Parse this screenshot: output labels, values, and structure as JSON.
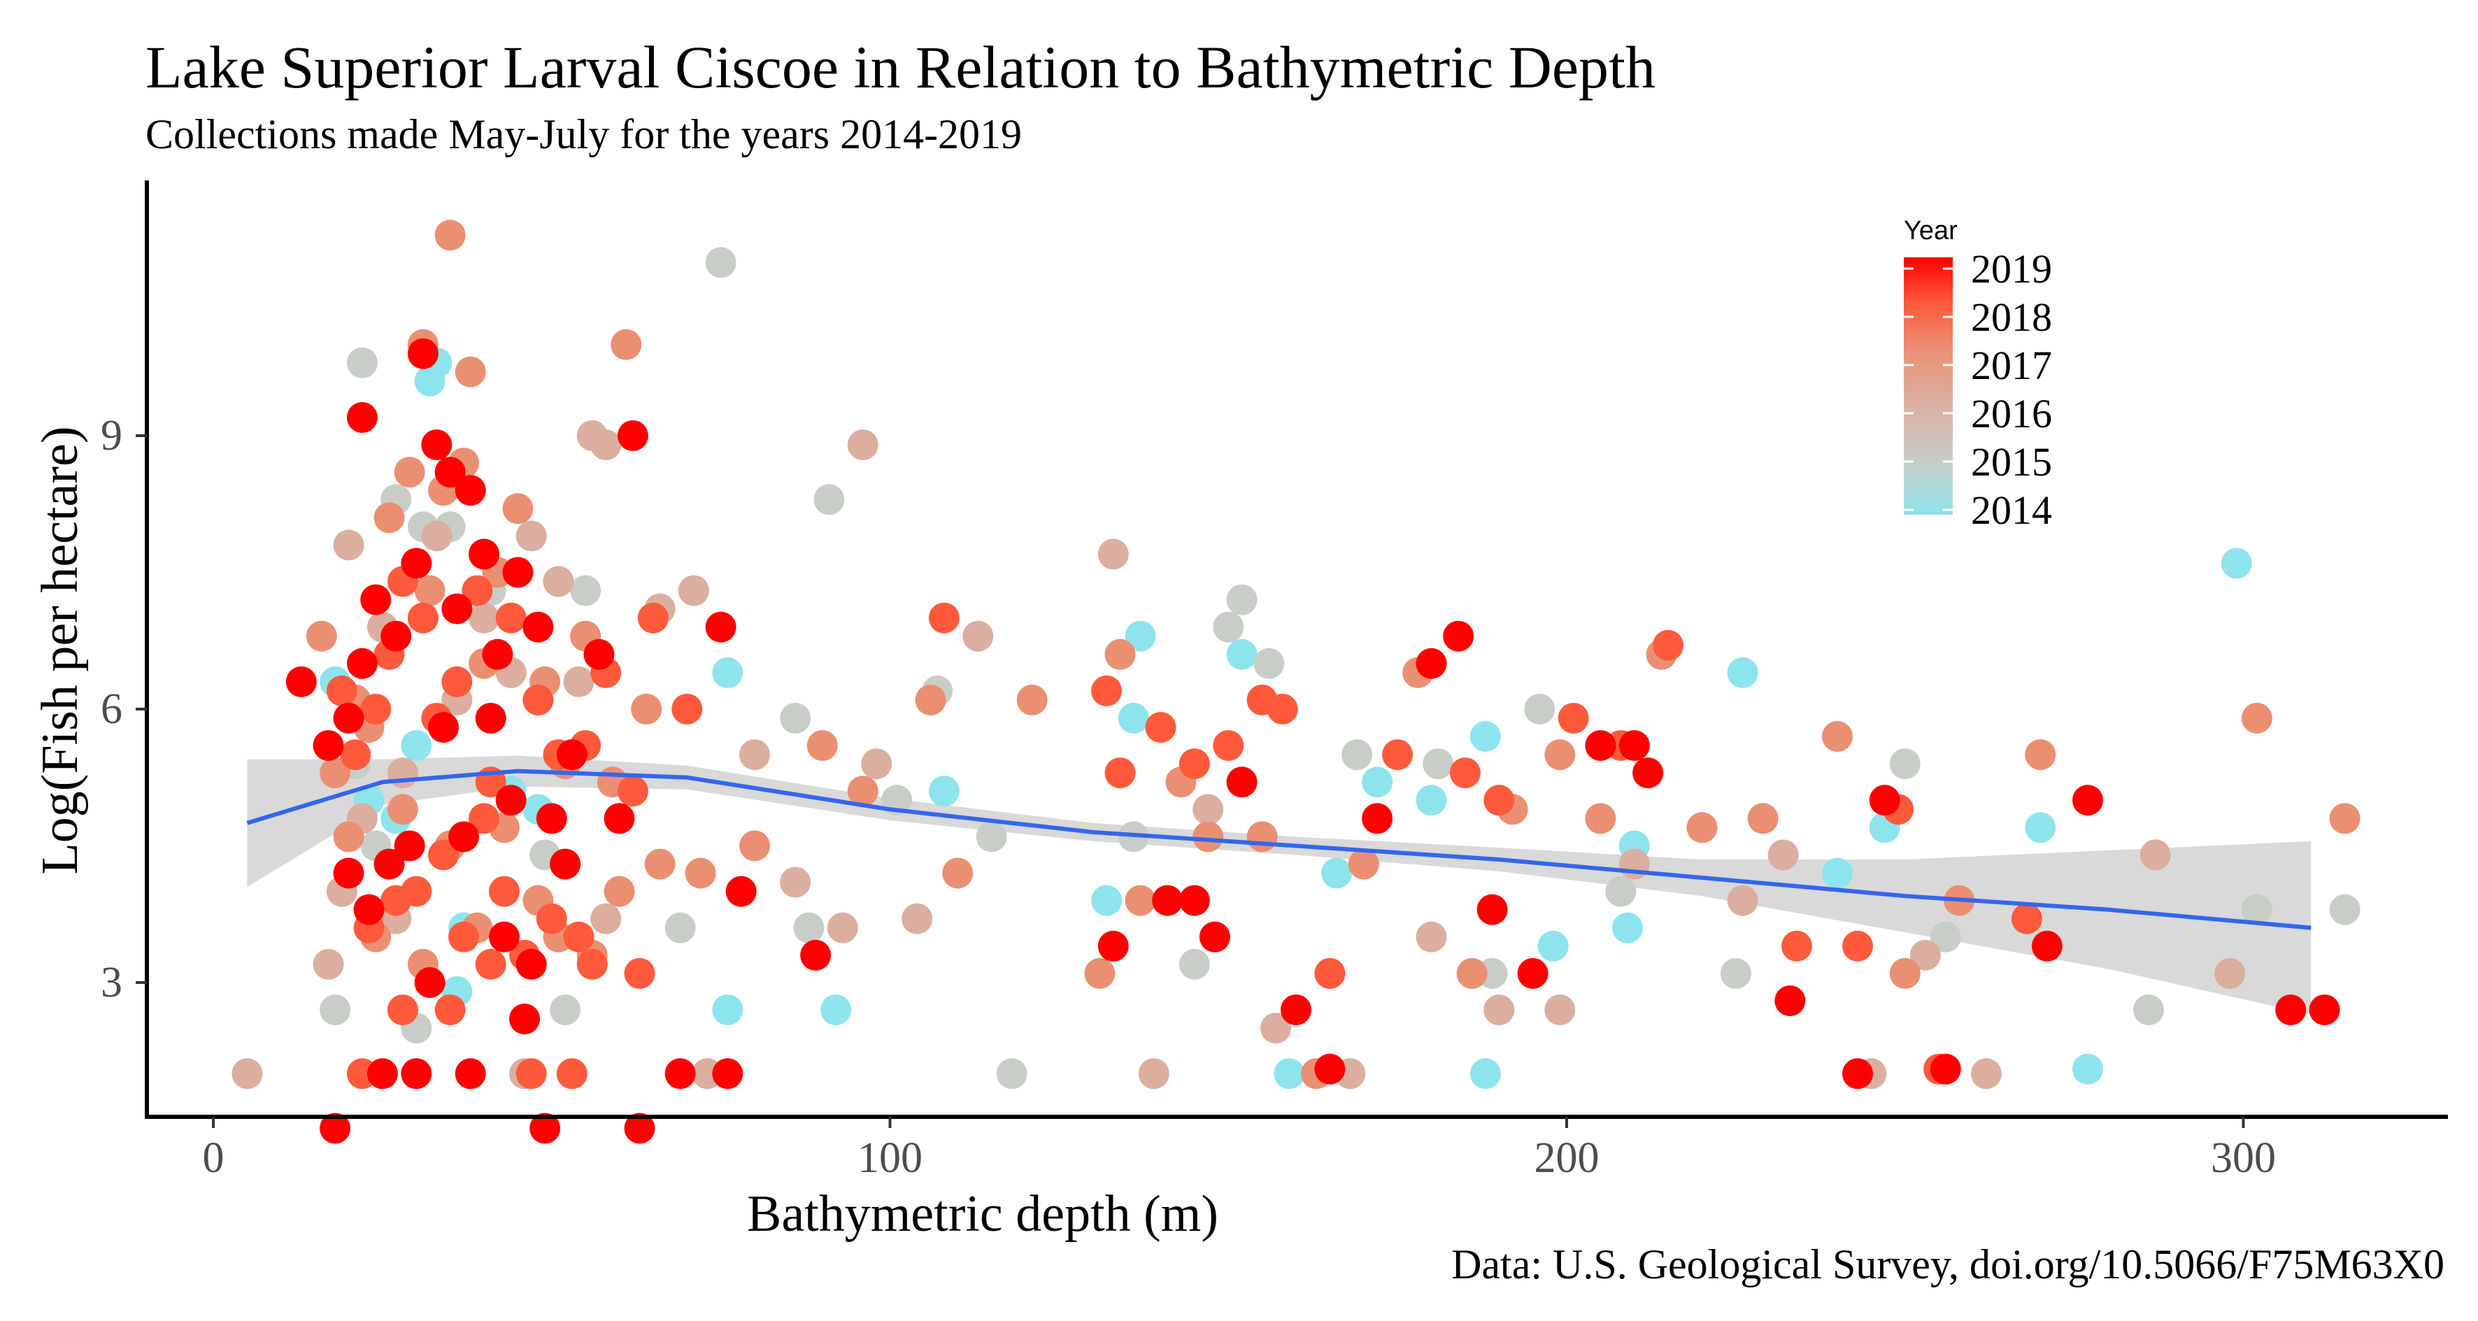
{
  "chart_data": {
    "type": "scatter",
    "title": "Lake Superior Larval Ciscoe in Relation to Bathymetric Depth",
    "subtitle": "Collections made May-July for the years 2014-2019",
    "xlabel": "Bathymetric depth (m)",
    "ylabel": "Log(Fish per hectare)",
    "caption": "Data: U.S. Geological Survey, doi.org/10.5066/F75M63X0",
    "xlim": [
      -10,
      330
    ],
    "ylim": [
      1.4,
      11.5
    ],
    "x_ticks": [
      0,
      100,
      200,
      300
    ],
    "x_tick_labels": [
      "0",
      "100",
      "200",
      "300"
    ],
    "y_ticks": [
      3,
      6,
      9
    ],
    "y_tick_labels": [
      "3",
      "6",
      "9"
    ],
    "grid": false,
    "legend": {
      "title": "Year",
      "placement": "top-right",
      "labels": [
        "2019",
        "2018",
        "2017",
        "2016",
        "2015",
        "2014"
      ],
      "colors": [
        "#ff0000",
        "#ff5a3c",
        "#eb8f72",
        "#dbaea0",
        "#c8cdc8",
        "#8ee4ec"
      ]
    },
    "smooth": {
      "color": "#3366ee",
      "band_color": "#cccccc",
      "x": [
        5,
        25,
        45,
        70,
        100,
        130,
        160,
        190,
        220,
        250,
        280,
        310
      ],
      "y": [
        4.75,
        5.2,
        5.32,
        5.25,
        4.9,
        4.65,
        4.5,
        4.35,
        4.15,
        3.95,
        3.8,
        3.6
      ],
      "lower": [
        4.05,
        4.95,
        5.15,
        5.12,
        4.78,
        4.55,
        4.4,
        4.22,
        3.95,
        3.55,
        3.15,
        2.65
      ],
      "upper": [
        5.45,
        5.45,
        5.49,
        5.38,
        5.02,
        4.75,
        4.6,
        4.48,
        4.35,
        4.35,
        4.45,
        4.55
      ]
    },
    "series": [
      {
        "name": "2019",
        "color": "#ff0000",
        "x": [
          13,
          17,
          20,
          22,
          24,
          27,
          30,
          33,
          35,
          38,
          40,
          42,
          45,
          48,
          50,
          53,
          57,
          62,
          20,
          23,
          26,
          29,
          32,
          34,
          37,
          41,
          44,
          47,
          52,
          60,
          75,
          78,
          89,
          133,
          141,
          145,
          148,
          152,
          160,
          165,
          172,
          180,
          184,
          189,
          195,
          205,
          210,
          212,
          233,
          243,
          247,
          256,
          271,
          277,
          307,
          312,
          22,
          31,
          36,
          46,
          18,
          25,
          30,
          38,
          43,
          49,
          63,
          69,
          76
        ],
        "y": [
          6.3,
          5.6,
          5.9,
          6.5,
          7.2,
          6.8,
          7.6,
          8.9,
          8.6,
          8.4,
          7.7,
          6.6,
          7.5,
          6.9,
          4.8,
          5.5,
          6.6,
          9.0,
          4.2,
          3.8,
          4.3,
          4.5,
          3.0,
          5.8,
          4.6,
          5.9,
          5.0,
          3.2,
          4.3,
          4.8,
          6.9,
          4.0,
          3.3,
          3.4,
          3.9,
          3.9,
          3.5,
          5.2,
          2.7,
          2.05,
          4.8,
          6.5,
          6.8,
          3.8,
          3.1,
          5.6,
          5.6,
          5.3,
          2.8,
          2.0,
          5.0,
          2.05,
          3.4,
          5.0,
          2.7,
          2.7,
          9.2,
          9.9,
          7.1,
          2.6,
          1.4,
          2.0,
          2.0,
          2.0,
          3.5,
          1.4,
          1.4,
          2.0,
          2.0
        ]
      },
      {
        "name": "2018",
        "color": "#ff5a3c",
        "x": [
          19,
          21,
          24,
          26,
          28,
          31,
          33,
          36,
          39,
          41,
          44,
          48,
          51,
          55,
          58,
          62,
          65,
          70,
          23,
          27,
          30,
          34,
          37,
          40,
          43,
          46,
          50,
          54,
          56,
          63,
          108,
          132,
          134,
          140,
          145,
          150,
          155,
          158,
          165,
          175,
          185,
          190,
          201,
          208,
          215,
          234,
          243,
          249,
          255,
          268,
          22,
          28,
          35,
          41,
          47,
          53
        ],
        "y": [
          6.2,
          5.5,
          6.0,
          6.6,
          7.4,
          7.0,
          5.9,
          6.3,
          7.3,
          5.2,
          7.0,
          6.1,
          5.5,
          5.6,
          6.4,
          5.1,
          7.0,
          6.0,
          3.6,
          3.9,
          4.0,
          4.4,
          3.5,
          4.8,
          4.0,
          3.3,
          3.7,
          3.5,
          3.2,
          3.1,
          7.0,
          6.2,
          5.3,
          5.8,
          5.4,
          5.6,
          6.1,
          6.0,
          3.1,
          5.5,
          5.3,
          5.0,
          5.9,
          5.6,
          6.7,
          3.4,
          3.4,
          4.9,
          2.05,
          3.7,
          2.0,
          2.7,
          2.7,
          3.2,
          2.0,
          2.0
        ]
      },
      {
        "name": "2017",
        "color": "#eb8f72",
        "x": [
          16,
          18,
          21,
          23,
          26,
          29,
          32,
          34,
          37,
          40,
          42,
          45,
          49,
          52,
          55,
          59,
          64,
          72,
          20,
          24,
          28,
          31,
          35,
          39,
          43,
          48,
          51,
          56,
          60,
          66,
          80,
          90,
          96,
          106,
          110,
          121,
          131,
          134,
          137,
          143,
          147,
          155,
          163,
          170,
          178,
          186,
          192,
          199,
          205,
          214,
          220,
          229,
          240,
          250,
          258,
          270,
          302,
          315,
          35,
          31,
          61,
          38
        ],
        "y": [
          6.8,
          5.3,
          6.1,
          5.8,
          8.1,
          8.6,
          7.3,
          8.4,
          8.7,
          6.5,
          7.5,
          8.2,
          6.3,
          5.4,
          6.8,
          5.2,
          6.0,
          4.2,
          4.6,
          3.5,
          4.9,
          3.2,
          4.5,
          3.6,
          4.7,
          3.9,
          3.5,
          3.3,
          4.0,
          4.3,
          4.5,
          5.6,
          5.1,
          6.1,
          4.2,
          6.1,
          3.1,
          6.6,
          3.9,
          5.2,
          4.6,
          4.6,
          2.0,
          4.3,
          6.4,
          3.1,
          4.9,
          5.5,
          4.8,
          6.6,
          4.7,
          4.8,
          5.7,
          3.1,
          3.9,
          5.5,
          5.9,
          4.8,
          11.2,
          10.0,
          10.0,
          9.7
        ]
      },
      {
        "name": "2016",
        "color": "#dbaea0",
        "x": [
          5,
          17,
          19,
          22,
          25,
          28,
          33,
          36,
          40,
          44,
          47,
          51,
          54,
          58,
          66,
          71,
          80,
          86,
          93,
          98,
          104,
          113,
          133,
          139,
          147,
          157,
          168,
          180,
          190,
          199,
          210,
          226,
          232,
          245,
          253,
          262,
          287,
          298,
          56,
          58,
          96,
          20,
          27,
          46,
          73
        ],
        "y": [
          2.0,
          3.2,
          4.0,
          4.8,
          6.9,
          5.3,
          7.9,
          6.1,
          7.0,
          6.4,
          7.9,
          7.4,
          6.3,
          3.7,
          7.1,
          7.3,
          5.5,
          4.1,
          3.6,
          5.4,
          3.7,
          6.8,
          7.7,
          2.0,
          4.9,
          2.5,
          2.0,
          3.5,
          2.7,
          2.7,
          4.3,
          3.9,
          4.4,
          2.0,
          3.3,
          2.0,
          4.4,
          3.1,
          9.0,
          8.9,
          8.9,
          7.8,
          3.7,
          2.0,
          2.0
        ]
      },
      {
        "name": "2015",
        "color": "#c8cdc8",
        "x": [
          18,
          21,
          24,
          27,
          30,
          35,
          41,
          49,
          55,
          69,
          86,
          88,
          91,
          101,
          107,
          115,
          118,
          136,
          145,
          150,
          152,
          156,
          165,
          169,
          181,
          189,
          196,
          208,
          225,
          250,
          256,
          286,
          302,
          315,
          75,
          22,
          31,
          42,
          52
        ],
        "y": [
          2.7,
          5.4,
          4.5,
          8.3,
          2.5,
          8.0,
          7.3,
          4.4,
          7.3,
          3.6,
          5.9,
          3.6,
          8.3,
          5.0,
          6.2,
          4.6,
          2.0,
          4.6,
          3.2,
          6.9,
          7.2,
          6.5,
          3.1,
          5.5,
          5.4,
          3.1,
          6.0,
          4.0,
          3.1,
          5.4,
          3.5,
          2.7,
          3.8,
          3.8,
          10.9,
          9.8,
          8.0,
          6.6,
          2.7
        ]
      },
      {
        "name": "2014",
        "color": "#8ee4ec",
        "x": [
          18,
          23,
          27,
          30,
          33,
          37,
          44,
          48,
          76,
          76,
          92,
          108,
          132,
          136,
          137,
          152,
          159,
          166,
          172,
          180,
          188,
          188,
          198,
          209,
          210,
          226,
          240,
          247,
          270,
          277,
          299,
          32,
          36
        ],
        "y": [
          6.3,
          5.0,
          4.8,
          5.6,
          9.8,
          3.6,
          5.1,
          4.9,
          6.4,
          2.7,
          2.7,
          5.1,
          3.9,
          5.9,
          6.8,
          6.6,
          2.0,
          4.2,
          5.2,
          5.0,
          5.7,
          2.0,
          3.4,
          3.6,
          4.5,
          6.4,
          4.2,
          4.7,
          4.7,
          2.05,
          7.6,
          9.6,
          2.9
        ]
      }
    ]
  }
}
